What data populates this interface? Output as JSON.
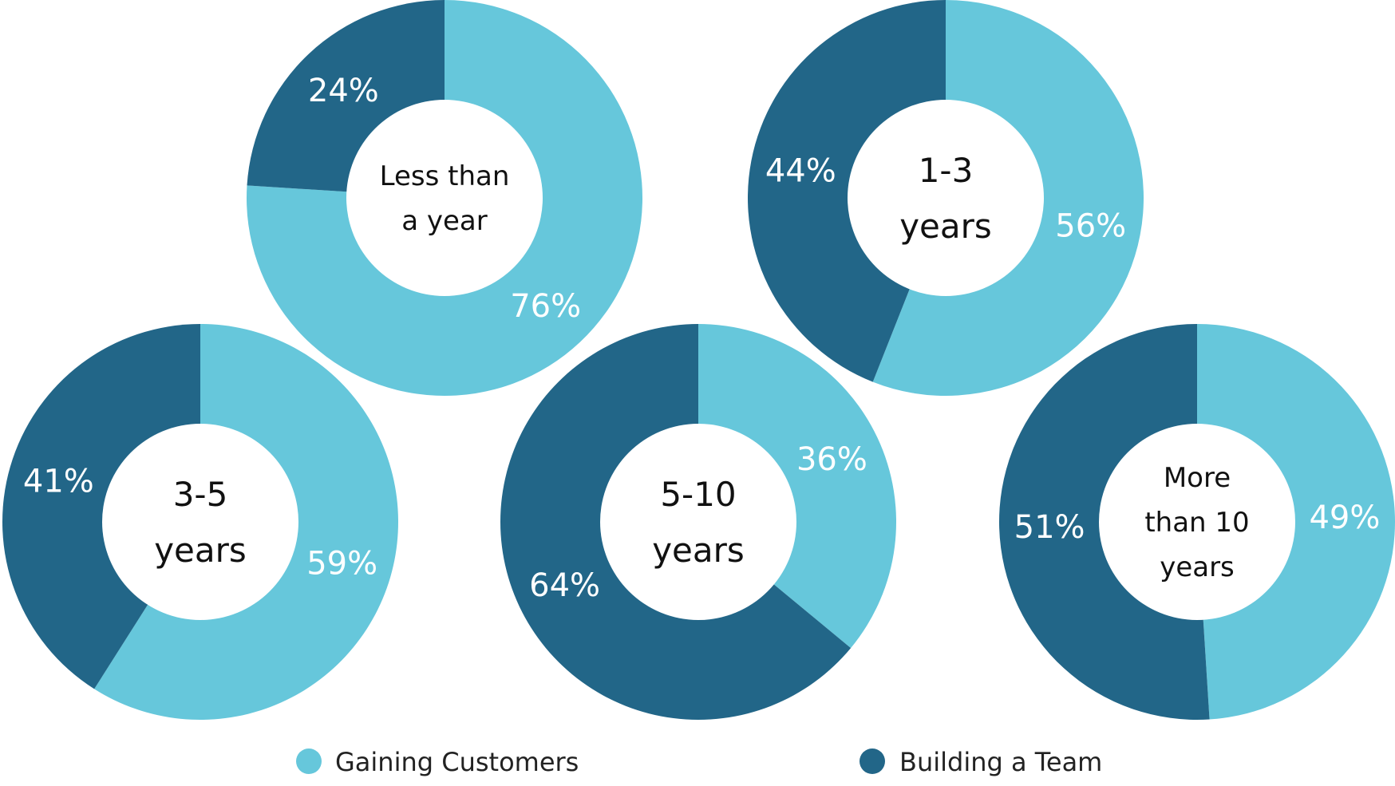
{
  "colors": {
    "gaining": "#66c7db",
    "building": "#226688",
    "hole": "#ffffff"
  },
  "legend": [
    {
      "label": "Gaining Customers",
      "color": "#66c7db"
    },
    {
      "label": "Building a Team",
      "color": "#226688"
    }
  ],
  "chart_data": [
    {
      "type": "pie",
      "title": "",
      "center_lines": [
        "Less than",
        "a year"
      ],
      "slices": [
        {
          "name": "Gaining Customers",
          "value": 76,
          "label": "76%"
        },
        {
          "name": "Building a Team",
          "value": 24,
          "label": "24%"
        }
      ]
    },
    {
      "type": "pie",
      "title": "",
      "center_lines": [
        "1-3",
        "years"
      ],
      "slices": [
        {
          "name": "Gaining Customers",
          "value": 56,
          "label": "56%"
        },
        {
          "name": "Building a Team",
          "value": 44,
          "label": "44%"
        }
      ]
    },
    {
      "type": "pie",
      "title": "",
      "center_lines": [
        "3-5",
        "years"
      ],
      "slices": [
        {
          "name": "Gaining Customers",
          "value": 59,
          "label": "59%"
        },
        {
          "name": "Building a Team",
          "value": 41,
          "label": "41%"
        }
      ]
    },
    {
      "type": "pie",
      "title": "",
      "center_lines": [
        "5-10",
        "years"
      ],
      "slices": [
        {
          "name": "Gaining Customers",
          "value": 36,
          "label": "36%"
        },
        {
          "name": "Building a Team",
          "value": 64,
          "label": "64%"
        }
      ]
    },
    {
      "type": "pie",
      "title": "",
      "center_lines": [
        "More",
        "than 10",
        "years"
      ],
      "slices": [
        {
          "name": "Gaining Customers",
          "value": 49,
          "label": "49%"
        },
        {
          "name": "Building a Team",
          "value": 51,
          "label": "51%"
        }
      ]
    }
  ]
}
